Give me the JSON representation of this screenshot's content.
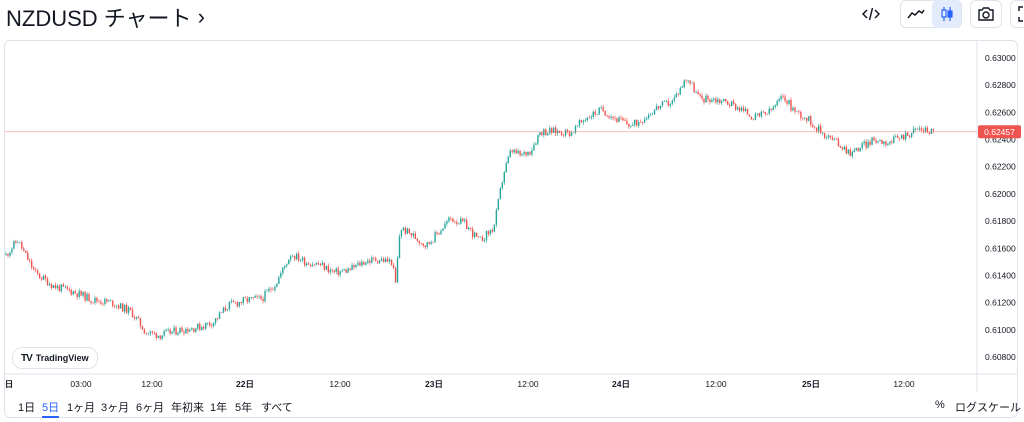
{
  "header": {
    "title": "NZDUSD チャート",
    "chevron": "›"
  },
  "toolbar": {
    "embed_icon": "code-icon",
    "line_icon": "line-chart-icon",
    "candle_icon": "candlestick-icon",
    "snapshot_icon": "camera-icon",
    "fullscreen_icon": "fullscreen-icon",
    "active_style": "candles"
  },
  "chart_data": {
    "type": "candlestick",
    "symbol": "NZDUSD",
    "y_ticks": [
      "0.63000",
      "0.62800",
      "0.62600",
      "0.62400",
      "0.62200",
      "0.62000",
      "0.61800",
      "0.61600",
      "0.61400",
      "0.61200",
      "0.61000",
      "0.60800"
    ],
    "ylim": [
      0.6072,
      0.6312
    ],
    "x_ticks": [
      "日",
      "03:00",
      "12:00",
      "22日",
      "12:00",
      "23日",
      "12:00",
      "24日",
      "12:00",
      "25日",
      "12:00"
    ],
    "last_price": "0.62457",
    "last_price_value": 0.62457,
    "colors": {
      "up": "#26a69a",
      "down": "#ef5350",
      "price_line": "#ef5350"
    },
    "grid": false,
    "path": [
      [
        0.0,
        0.6155
      ],
      [
        0.012,
        0.6166
      ],
      [
        0.03,
        0.6142
      ],
      [
        0.05,
        0.6132
      ],
      [
        0.07,
        0.6128
      ],
      [
        0.09,
        0.6122
      ],
      [
        0.11,
        0.612
      ],
      [
        0.13,
        0.6113
      ],
      [
        0.145,
        0.6098
      ],
      [
        0.16,
        0.6096
      ],
      [
        0.18,
        0.61
      ],
      [
        0.2,
        0.6102
      ],
      [
        0.215,
        0.6106
      ],
      [
        0.23,
        0.6118
      ],
      [
        0.25,
        0.6122
      ],
      [
        0.265,
        0.6123
      ],
      [
        0.28,
        0.6135
      ],
      [
        0.295,
        0.6156
      ],
      [
        0.31,
        0.615
      ],
      [
        0.325,
        0.6148
      ],
      [
        0.34,
        0.6142
      ],
      [
        0.355,
        0.6144
      ],
      [
        0.37,
        0.615
      ],
      [
        0.385,
        0.6152
      ],
      [
        0.4,
        0.615
      ],
      [
        0.403,
        0.6132
      ],
      [
        0.408,
        0.6175
      ],
      [
        0.42,
        0.617
      ],
      [
        0.435,
        0.6162
      ],
      [
        0.448,
        0.6172
      ],
      [
        0.46,
        0.6182
      ],
      [
        0.475,
        0.6178
      ],
      [
        0.49,
        0.6165
      ],
      [
        0.505,
        0.6175
      ],
      [
        0.515,
        0.6215
      ],
      [
        0.523,
        0.6232
      ],
      [
        0.533,
        0.6228
      ],
      [
        0.543,
        0.6232
      ],
      [
        0.553,
        0.6246
      ],
      [
        0.57,
        0.6246
      ],
      [
        0.585,
        0.6245
      ],
      [
        0.6,
        0.6256
      ],
      [
        0.617,
        0.6262
      ],
      [
        0.632,
        0.6255
      ],
      [
        0.648,
        0.625
      ],
      [
        0.66,
        0.6256
      ],
      [
        0.675,
        0.6264
      ],
      [
        0.69,
        0.6268
      ],
      [
        0.705,
        0.6286
      ],
      [
        0.718,
        0.627
      ],
      [
        0.73,
        0.627
      ],
      [
        0.745,
        0.6268
      ],
      [
        0.76,
        0.6263
      ],
      [
        0.775,
        0.6256
      ],
      [
        0.79,
        0.626
      ],
      [
        0.805,
        0.6272
      ],
      [
        0.815,
        0.6262
      ],
      [
        0.83,
        0.6255
      ],
      [
        0.845,
        0.6245
      ],
      [
        0.86,
        0.6238
      ],
      [
        0.875,
        0.623
      ],
      [
        0.885,
        0.6235
      ],
      [
        0.9,
        0.624
      ],
      [
        0.915,
        0.6238
      ],
      [
        0.93,
        0.6243
      ],
      [
        0.945,
        0.6248
      ],
      [
        0.96,
        0.6246
      ]
    ],
    "watermark": "TradingView"
  },
  "range_buttons": [
    {
      "label": "1日",
      "active": false
    },
    {
      "label": "5日",
      "active": true
    },
    {
      "label": "1ヶ月",
      "active": false
    },
    {
      "label": "3ヶ月",
      "active": false
    },
    {
      "label": "6ヶ月",
      "active": false
    },
    {
      "label": "年初来",
      "active": false
    },
    {
      "label": "1年",
      "active": false
    },
    {
      "label": "5年",
      "active": false
    },
    {
      "label": "すべて",
      "active": false
    }
  ],
  "footer": {
    "percent_label": "%",
    "log_label": "ログスケール"
  }
}
